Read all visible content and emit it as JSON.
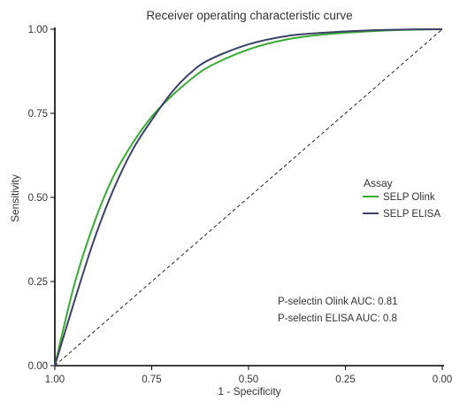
{
  "chart_data": {
    "type": "line",
    "title": "Receiver operating characteristic curve",
    "xlabel": "1 - Specificity",
    "ylabel": "Sensitivity",
    "x_reversed": true,
    "xlim": [
      1.0,
      0.0
    ],
    "ylim": [
      0.0,
      1.0
    ],
    "x_ticks": [
      "1.00",
      "0.75",
      "0.50",
      "0.25",
      "0.00"
    ],
    "y_ticks": [
      "0.00",
      "0.25",
      "0.50",
      "0.75",
      "1.00"
    ],
    "grid": false,
    "legend_title": "Assay",
    "legend_position": "right",
    "series": [
      {
        "name": "SELP Olink",
        "color": "#3aaa35",
        "points": [
          [
            1.0,
            0.0
          ],
          [
            0.95,
            0.24
          ],
          [
            0.9,
            0.42
          ],
          [
            0.85,
            0.56
          ],
          [
            0.8,
            0.66
          ],
          [
            0.75,
            0.74
          ],
          [
            0.7,
            0.8
          ],
          [
            0.65,
            0.85
          ],
          [
            0.6,
            0.89
          ],
          [
            0.5,
            0.94
          ],
          [
            0.4,
            0.97
          ],
          [
            0.3,
            0.985
          ],
          [
            0.2,
            0.993
          ],
          [
            0.1,
            0.998
          ],
          [
            0.0,
            1.0
          ]
        ]
      },
      {
        "name": "SELP ELISA",
        "color": "#3c4168",
        "points": [
          [
            1.0,
            0.0
          ],
          [
            0.95,
            0.19
          ],
          [
            0.9,
            0.37
          ],
          [
            0.85,
            0.52
          ],
          [
            0.8,
            0.64
          ],
          [
            0.75,
            0.73
          ],
          [
            0.7,
            0.81
          ],
          [
            0.65,
            0.87
          ],
          [
            0.6,
            0.91
          ],
          [
            0.5,
            0.955
          ],
          [
            0.4,
            0.98
          ],
          [
            0.3,
            0.99
          ],
          [
            0.2,
            0.996
          ],
          [
            0.1,
            0.999
          ],
          [
            0.0,
            1.0
          ]
        ]
      }
    ],
    "reference_line": {
      "style": "dashed",
      "from": [
        1.0,
        0.0
      ],
      "to": [
        0.0,
        1.0
      ]
    },
    "annotations": [
      "P-selectin Olink AUC: 0.81",
      "P-selectin ELISA AUC: 0.8"
    ]
  }
}
